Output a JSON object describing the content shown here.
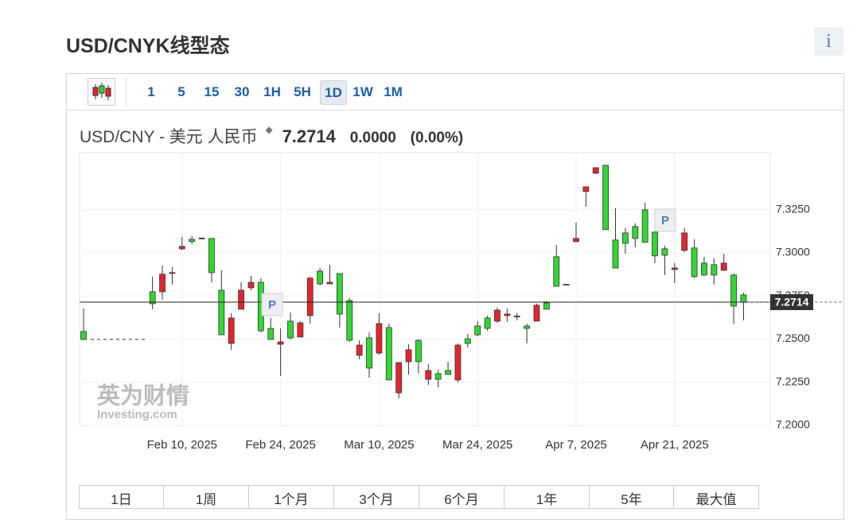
{
  "header": {
    "title": "USD/CNYK线型态",
    "info": "i"
  },
  "toolbar": {
    "intervals": [
      "1",
      "5",
      "15",
      "30",
      "1H",
      "5H",
      "1D",
      "1W",
      "1M"
    ],
    "active": "1D"
  },
  "quote": {
    "name": "USD/CNY - 美元 人民币",
    "price": "7.2714",
    "change": "0.0000",
    "change_pct": "(0.00%)"
  },
  "chart_data": {
    "type": "candlestick",
    "x": [
      "2025-01-27",
      "2025-01-28",
      "2025-01-29",
      "2025-01-30",
      "2025-01-31",
      "2025-02-03",
      "2025-02-04",
      "2025-02-05",
      "2025-02-06",
      "2025-02-07",
      "2025-02-10",
      "2025-02-11",
      "2025-02-12",
      "2025-02-13",
      "2025-02-14",
      "2025-02-17",
      "2025-02-18",
      "2025-02-19",
      "2025-02-20",
      "2025-02-21",
      "2025-02-24",
      "2025-02-25",
      "2025-02-26",
      "2025-02-27",
      "2025-02-28",
      "2025-03-03",
      "2025-03-04",
      "2025-03-05",
      "2025-03-06",
      "2025-03-07",
      "2025-03-10",
      "2025-03-11",
      "2025-03-12",
      "2025-03-13",
      "2025-03-14",
      "2025-03-17",
      "2025-03-18",
      "2025-03-19",
      "2025-03-20",
      "2025-03-21",
      "2025-03-24",
      "2025-03-25",
      "2025-03-26",
      "2025-03-27",
      "2025-03-28",
      "2025-03-31",
      "2025-04-01",
      "2025-04-02",
      "2025-04-03",
      "2025-04-04",
      "2025-04-07",
      "2025-04-08",
      "2025-04-09",
      "2025-04-10",
      "2025-04-11",
      "2025-04-14",
      "2025-04-15",
      "2025-04-16",
      "2025-04-17",
      "2025-04-18",
      "2025-04-21",
      "2025-04-22",
      "2025-04-23",
      "2025-04-24",
      "2025-04-25",
      "2025-04-28",
      "2025-04-29",
      "2025-04-30"
    ],
    "open": [
      7.2544,
      null,
      null,
      null,
      null,
      null,
      null,
      7.2774,
      7.2774,
      7.288,
      7.3023,
      7.3078,
      7.3081,
      7.3083,
      7.2783,
      7.2475,
      7.2673,
      7.2797,
      7.2829,
      7.2562,
      7.247,
      7.2604,
      7.2512,
      7.2636,
      7.2894,
      7.282,
      7.288,
      7.2723,
      7.2406,
      7.2507,
      7.2419,
      7.2567,
      7.2189,
      7.2369,
      7.2493,
      7.2267,
      7.23,
      7.2318,
      7.2263,
      7.2502,
      7.2576,
      7.2622,
      7.2604,
      7.2636,
      7.2629,
      7.2576,
      7.2604,
      7.271,
      7.2977,
      7.2815,
      7.3065,
      7.3355,
      7.3461,
      7.3507,
      7.3074,
      7.3115,
      7.3152,
      7.3249,
      7.312,
      7.3023,
      7.2903,
      7.3014,
      7.3028,
      7.294,
      7.2931,
      7.2899,
      7.2871,
      7.2756
    ],
    "high": [
      7.2677,
      null,
      null,
      null,
      null,
      null,
      null,
      7.2862,
      7.2926,
      7.2917,
      7.3092,
      7.3097,
      7.3088,
      7.3083,
      7.2899,
      7.265,
      7.2829,
      7.2866,
      7.2853,
      7.2622,
      7.2562,
      7.2654,
      7.2604,
      7.2862,
      7.2912,
      7.2931,
      7.288,
      7.2737,
      7.2493,
      7.2539,
      7.265,
      7.259,
      7.2364,
      7.247,
      7.2498,
      7.2355,
      7.2323,
      7.2369,
      7.2475,
      7.253,
      7.2604,
      7.2636,
      7.2682,
      7.2677,
      7.265,
      7.259,
      7.2705,
      7.2719,
      7.3046,
      7.2817,
      7.3175,
      7.3382,
      7.3493,
      7.3507,
      7.3258,
      7.3143,
      7.3171,
      7.329,
      7.3129,
      7.3041,
      7.294,
      7.3143,
      7.3078,
      7.2977,
      7.2968,
      7.2995,
      7.288,
      7.277
    ],
    "low": [
      7.2493,
      null,
      null,
      null,
      null,
      null,
      null,
      7.2673,
      7.2728,
      7.2816,
      7.3014,
      7.3051,
      7.3078,
      7.2829,
      7.2525,
      7.2438,
      7.2673,
      7.2783,
      7.2539,
      7.2498,
      7.2286,
      7.2498,
      7.2512,
      7.259,
      7.2811,
      7.282,
      7.2567,
      7.2484,
      7.2382,
      7.2276,
      7.241,
      7.2263,
      7.2157,
      7.2295,
      7.23,
      7.2235,
      7.2221,
      7.2295,
      7.2249,
      7.2452,
      7.2516,
      7.2548,
      7.2594,
      7.2599,
      7.2608,
      7.2475,
      7.2604,
      7.2673,
      7.2806,
      7.2815,
      7.306,
      7.3267,
      7.3456,
      7.3134,
      7.2912,
      7.2995,
      7.3032,
      7.306,
      7.294,
      7.2871,
      7.2825,
      7.3005,
      7.2853,
      7.2866,
      7.2816,
      7.2894,
      7.259,
      7.2608
    ],
    "close": [
      7.2498,
      null,
      null,
      null,
      null,
      null,
      null,
      7.2705,
      7.2876,
      7.2885,
      7.3037,
      7.3065,
      7.3085,
      7.2885,
      7.2525,
      7.2622,
      7.2783,
      7.2829,
      7.2548,
      7.2498,
      7.2484,
      7.2507,
      7.2594,
      7.2853,
      7.282,
      7.2829,
      7.2645,
      7.2493,
      7.2465,
      7.2332,
      7.259,
      7.2263,
      7.2364,
      7.2438,
      7.2369,
      7.2318,
      7.2267,
      7.2295,
      7.2465,
      7.2475,
      7.2525,
      7.2562,
      7.2668,
      7.2645,
      7.2633,
      7.2562,
      7.2696,
      7.2673,
      7.2806,
      7.2817,
      7.3083,
      7.3382,
      7.3493,
      7.3134,
      7.2912,
      7.3055,
      7.3083,
      7.306,
      7.2982,
      7.2986,
      7.2912,
      7.3115,
      7.2862,
      7.2871,
      7.2871,
      7.294,
      7.2691,
      7.2714
    ],
    "up_color": "#e3262e",
    "down_color": "#33d633",
    "ylim": [
      7.2,
      7.358
    ],
    "yticks": [
      {
        "value": 7.2,
        "label": "7.2000"
      },
      {
        "value": 7.225,
        "label": "7.2250"
      },
      {
        "value": 7.25,
        "label": "7.2500"
      },
      {
        "value": 7.275,
        "label": "7.2750"
      },
      {
        "value": 7.3,
        "label": "7.3000"
      },
      {
        "value": 7.325,
        "label": "7.3250"
      }
    ],
    "xticks": [
      {
        "value": "2025-02-10",
        "label": "Feb 10, 2025"
      },
      {
        "value": "2025-02-24",
        "label": "Feb 24, 2025"
      },
      {
        "value": "2025-03-10",
        "label": "Mar 10, 2025"
      },
      {
        "value": "2025-03-24",
        "label": "Mar 24, 2025"
      },
      {
        "value": "2025-04-07",
        "label": "Apr 7, 2025"
      },
      {
        "value": "2025-04-21",
        "label": "Apr 21, 2025"
      }
    ],
    "grid": true,
    "markers": [
      "P",
      "P"
    ]
  },
  "watermark": {
    "cn": "英为财情",
    "en": "Investing.com"
  },
  "range_tabs": [
    "1日",
    "1周",
    "1个月",
    "3个月",
    "6个月",
    "1年",
    "5年",
    "最大值"
  ]
}
